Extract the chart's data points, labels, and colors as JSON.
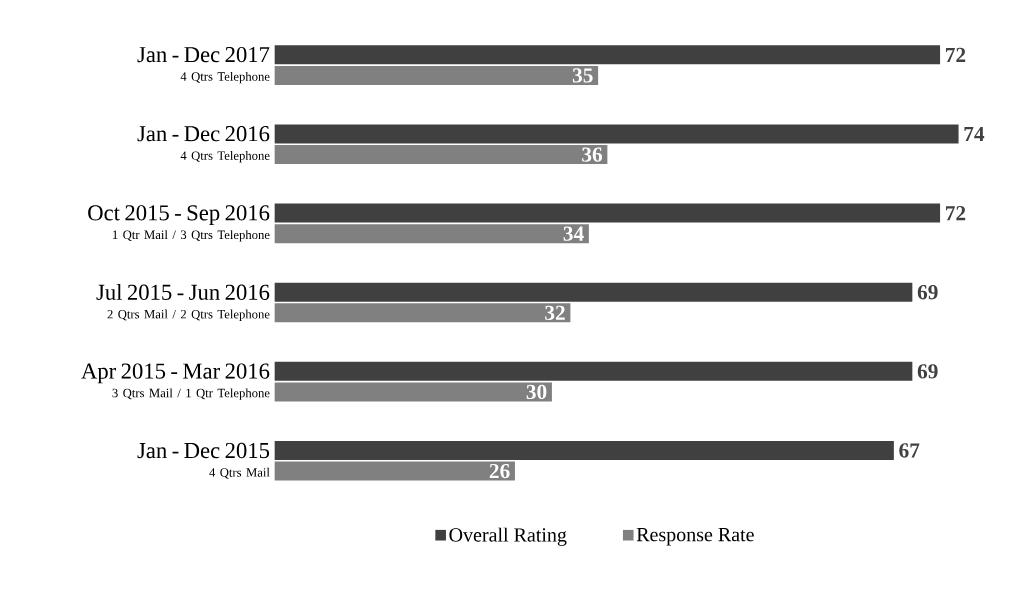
{
  "chart_data": {
    "type": "bar",
    "orientation": "horizontal",
    "categories": [
      "Jan - Dec 2017",
      "Jan - Dec 2016",
      "Oct 2015 - Sep 2016",
      "Jul 2015 - Jun 2016",
      "Apr 2015 - Mar 2016",
      "Jan - Dec 2015"
    ],
    "annotations": [
      "4 Qtrs Telephone",
      "4 Qtrs Telephone",
      "1 Qtr Mail / 3 Qtrs Telephone",
      "2 Qtrs Mail / 2 Qtrs Telephone",
      "3 Qtrs Mail / 1 Qtr Telephone",
      "4 Qtrs Mail"
    ],
    "series": [
      {
        "name": "Response Rate",
        "color": "#808080",
        "values": [
          35,
          36,
          34,
          32,
          30,
          26
        ]
      },
      {
        "name": "Overall Rating",
        "color": "#404040",
        "values": [
          72,
          74,
          72,
          69,
          69,
          67
        ]
      }
    ],
    "data_labels": true,
    "legend": "bottom"
  }
}
